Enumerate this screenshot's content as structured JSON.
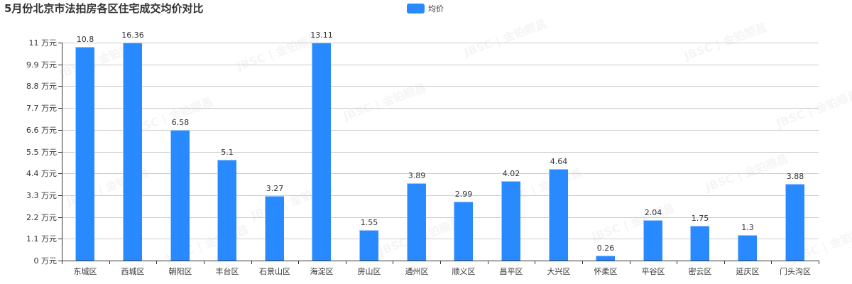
{
  "title": "5月份北京市法拍房各区住宅成交均价对比",
  "legend": {
    "label": "均价",
    "color": "#2989ff"
  },
  "watermark": "JBSC | 金铂顺昌",
  "chart_data": {
    "type": "bar",
    "title": "5月份北京市法拍房各区住宅成交均价对比",
    "xlabel": "",
    "ylabel": "万元",
    "ylim": [
      0,
      11
    ],
    "grid": true,
    "legend_position": "top-center",
    "y_ticks": [
      "0 万元",
      "1.1 万元",
      "2.2 万元",
      "3.3 万元",
      "4.4 万元",
      "5.5 万元",
      "6.6 万元",
      "7.7 万元",
      "8.8 万元",
      "9.9 万元",
      "11 万元"
    ],
    "categories": [
      "东城区",
      "西城区",
      "朝阳区",
      "丰台区",
      "石景山区",
      "海淀区",
      "房山区",
      "通州区",
      "顺义区",
      "昌平区",
      "大兴区",
      "怀柔区",
      "平谷区",
      "密云区",
      "延庆区",
      "门头沟区"
    ],
    "series": [
      {
        "name": "均价",
        "color": "#2989ff",
        "values": [
          10.8,
          16.36,
          6.58,
          5.1,
          3.27,
          13.11,
          1.55,
          3.89,
          2.99,
          4.02,
          4.64,
          0.26,
          2.04,
          1.75,
          1.3,
          3.88
        ]
      }
    ]
  }
}
